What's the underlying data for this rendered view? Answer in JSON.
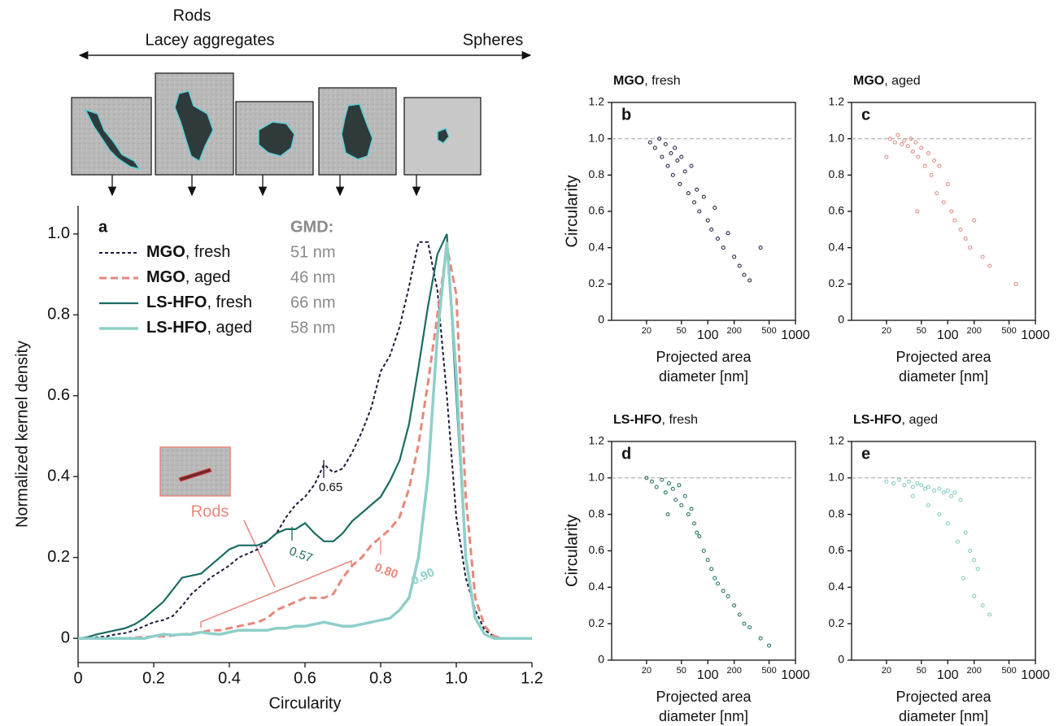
{
  "chart_data": [
    {
      "type": "line",
      "panel_label": "a",
      "xlabel": "Circularity",
      "ylabel": "Normalized kernel density",
      "morphology_labels": [
        "Rods",
        "Lacey aggregates",
        "Spheres"
      ],
      "rods_label": "Rods",
      "legend_header": "GMD:",
      "xlim": [
        0,
        1.2
      ],
      "xticks": [
        0,
        0.2,
        0.4,
        0.6,
        0.8,
        {
          "value": 1,
          "label": "1.0"
        },
        1.2
      ],
      "ylim": [
        -0.06,
        1.07
      ],
      "yticks": [
        0,
        0.2,
        0.4,
        0.6,
        0.8,
        {
          "value": 1,
          "label": "1.0"
        }
      ],
      "x": [
        0,
        0.025,
        0.05,
        0.075,
        0.1,
        0.125,
        0.15,
        0.175,
        0.2,
        0.225,
        0.25,
        0.275,
        0.3,
        0.325,
        0.35,
        0.375,
        0.4,
        0.425,
        0.45,
        0.475,
        0.5,
        0.525,
        0.55,
        0.575,
        0.6,
        0.625,
        0.65,
        0.675,
        0.7,
        0.725,
        0.75,
        0.775,
        0.8,
        0.825,
        0.85,
        0.875,
        0.9,
        0.925,
        0.95,
        0.975,
        1.0,
        1.025,
        1.05,
        1.075,
        1.1,
        1.125,
        1.15,
        1.175,
        1.2
      ],
      "series": [
        {
          "name": "MGO, fresh",
          "color": "#1c1a3a",
          "dash": "dotted",
          "gmd": "51 nm",
          "peak_label": "0.65",
          "values": [
            0,
            0,
            0.003,
            0.005,
            0.01,
            0.013,
            0.02,
            0.03,
            0.04,
            0.045,
            0.055,
            0.08,
            0.11,
            0.13,
            0.15,
            0.165,
            0.18,
            0.2,
            0.21,
            0.22,
            0.24,
            0.26,
            0.3,
            0.33,
            0.35,
            0.38,
            0.43,
            0.41,
            0.42,
            0.46,
            0.51,
            0.57,
            0.66,
            0.7,
            0.77,
            0.87,
            0.98,
            0.98,
            0.86,
            0.6,
            0.3,
            0.15,
            0.07,
            0.02,
            0.005,
            0,
            0,
            0,
            0
          ]
        },
        {
          "name": "MGO, aged",
          "color": "#e8877c",
          "dash": "dashed",
          "gmd": "46 nm",
          "peak_label": "0.80",
          "values": [
            0,
            0,
            0,
            0,
            0,
            0,
            0.002,
            0.003,
            0.005,
            0.005,
            0.007,
            0.01,
            0.012,
            0.015,
            0.02,
            0.02,
            0.025,
            0.03,
            0.035,
            0.04,
            0.05,
            0.07,
            0.08,
            0.09,
            0.1,
            0.1,
            0.1,
            0.11,
            0.15,
            0.18,
            0.2,
            0.23,
            0.25,
            0.27,
            0.3,
            0.37,
            0.48,
            0.63,
            0.8,
            0.97,
            0.85,
            0.35,
            0.1,
            0.03,
            0.005,
            0,
            0,
            0,
            0
          ]
        },
        {
          "name": "LS-HFO, fresh",
          "color": "#1a6b63",
          "dash": "solid",
          "gmd": "66 nm",
          "peak_label": "0.57",
          "values": [
            0,
            0.003,
            0.01,
            0.015,
            0.02,
            0.025,
            0.035,
            0.05,
            0.07,
            0.09,
            0.12,
            0.15,
            0.155,
            0.16,
            0.18,
            0.2,
            0.22,
            0.23,
            0.23,
            0.23,
            0.24,
            0.26,
            0.27,
            0.27,
            0.285,
            0.26,
            0.24,
            0.24,
            0.26,
            0.29,
            0.31,
            0.33,
            0.35,
            0.39,
            0.44,
            0.53,
            0.67,
            0.82,
            0.95,
            1.0,
            0.6,
            0.2,
            0.05,
            0.01,
            0,
            0,
            0,
            0,
            0
          ]
        },
        {
          "name": "LS-HFO, aged",
          "color": "#8fcfc9",
          "dash": "thick",
          "gmd": "58 nm",
          "peak_label": "0.90",
          "values": [
            0,
            0,
            0,
            0,
            0,
            0,
            0,
            0,
            0.005,
            0.01,
            0.008,
            0.01,
            0.01,
            0.015,
            0.012,
            0.01,
            0.015,
            0.02,
            0.02,
            0.02,
            0.02,
            0.025,
            0.025,
            0.03,
            0.03,
            0.035,
            0.04,
            0.035,
            0.03,
            0.03,
            0.035,
            0.04,
            0.045,
            0.05,
            0.07,
            0.1,
            0.2,
            0.4,
            0.75,
            0.98,
            0.65,
            0.2,
            0.05,
            0.01,
            0,
            0,
            0,
            0,
            0
          ]
        }
      ]
    },
    {
      "type": "scatter",
      "panel_label": "b",
      "title": "MGO, fresh",
      "ylabel": "Circularity",
      "xlabel": [
        "Projected area",
        "diameter [nm]"
      ],
      "color": "#1c1a3a",
      "log_x": true,
      "hline": 1,
      "xlim": [
        8,
        1000
      ],
      "xticks": [
        20,
        50,
        100,
        200,
        500,
        1000
      ],
      "ylim": [
        0,
        1.2
      ],
      "yticks": [
        0,
        0.2,
        0.4,
        0.6,
        0.8,
        {
          "value": 1,
          "label": "1.0"
        },
        1.2
      ],
      "x": [
        22,
        25,
        28,
        30,
        33,
        35,
        38,
        40,
        42,
        45,
        48,
        50,
        55,
        60,
        65,
        70,
        75,
        80,
        90,
        100,
        110,
        120,
        130,
        150,
        170,
        200,
        230,
        260,
        300,
        400
      ],
      "values": [
        0.98,
        0.95,
        1.0,
        0.9,
        0.97,
        0.85,
        0.92,
        0.8,
        0.95,
        0.88,
        0.75,
        0.9,
        0.82,
        0.7,
        0.85,
        0.65,
        0.72,
        0.6,
        0.68,
        0.55,
        0.5,
        0.62,
        0.45,
        0.4,
        0.48,
        0.35,
        0.3,
        0.25,
        0.22,
        0.4
      ]
    },
    {
      "type": "scatter",
      "panel_label": "c",
      "title": "MGO, aged",
      "xlabel": [
        "Projected area",
        "diameter [nm]"
      ],
      "color": "#e0877d",
      "log_x": true,
      "hline": 1,
      "xlim": [
        8,
        1000
      ],
      "xticks": [
        20,
        50,
        100,
        200,
        500,
        1000
      ],
      "ylim": [
        0,
        1.2
      ],
      "yticks": [
        0,
        0.2,
        0.4,
        0.6,
        0.8,
        {
          "value": 1,
          "label": "1.0"
        },
        1.2
      ],
      "x": [
        22,
        25,
        27,
        30,
        32,
        35,
        38,
        40,
        43,
        46,
        50,
        55,
        60,
        65,
        70,
        75,
        80,
        90,
        100,
        110,
        120,
        140,
        160,
        180,
        200,
        250,
        300,
        20,
        45,
        600
      ],
      "values": [
        1.0,
        0.98,
        1.02,
        0.97,
        0.99,
        0.96,
        1.0,
        0.93,
        0.98,
        0.9,
        0.95,
        0.85,
        0.92,
        0.8,
        0.88,
        0.7,
        0.85,
        0.65,
        0.75,
        0.6,
        0.55,
        0.5,
        0.45,
        0.4,
        0.55,
        0.35,
        0.3,
        0.9,
        0.6,
        0.2
      ]
    },
    {
      "type": "scatter",
      "panel_label": "d",
      "title": "LS-HFO, fresh",
      "ylabel": "Circularity",
      "xlabel": [
        "Projected area",
        "diameter [nm]"
      ],
      "color": "#1a6b63",
      "log_x": true,
      "hline": 1,
      "xlim": [
        8,
        1000
      ],
      "xticks": [
        20,
        50,
        100,
        200,
        500,
        1000
      ],
      "ylim": [
        0,
        1.2
      ],
      "yticks": [
        0,
        0.2,
        0.4,
        0.6,
        0.8,
        {
          "value": 1,
          "label": "1.0"
        },
        1.2
      ],
      "x": [
        20,
        23,
        26,
        30,
        33,
        36,
        40,
        43,
        47,
        50,
        55,
        60,
        65,
        70,
        75,
        80,
        90,
        100,
        110,
        120,
        130,
        150,
        170,
        200,
        230,
        260,
        300,
        400,
        500,
        35
      ],
      "values": [
        1.0,
        0.98,
        0.95,
        0.99,
        0.92,
        0.97,
        0.94,
        0.88,
        0.96,
        0.85,
        0.9,
        0.8,
        0.83,
        0.75,
        0.7,
        0.68,
        0.6,
        0.55,
        0.5,
        0.45,
        0.42,
        0.38,
        0.35,
        0.3,
        0.25,
        0.2,
        0.18,
        0.12,
        0.08,
        0.8
      ]
    },
    {
      "type": "scatter",
      "panel_label": "e",
      "title": "LS-HFO, aged",
      "xlabel": [
        "Projected area",
        "diameter [nm]"
      ],
      "color": "#7ccac3",
      "log_x": true,
      "hline": 1,
      "xlim": [
        8,
        1000
      ],
      "xticks": [
        20,
        50,
        100,
        200,
        500,
        1000
      ],
      "ylim": [
        0,
        1.2
      ],
      "yticks": [
        0,
        0.2,
        0.4,
        0.6,
        0.8,
        {
          "value": 1,
          "label": "1.0"
        },
        1.2
      ],
      "x": [
        20,
        24,
        28,
        32,
        36,
        40,
        45,
        50,
        55,
        60,
        70,
        80,
        90,
        100,
        110,
        120,
        140,
        160,
        180,
        200,
        220,
        250,
        100,
        80,
        150,
        130,
        200,
        300,
        60,
        40
      ],
      "values": [
        0.98,
        0.97,
        0.99,
        0.96,
        0.98,
        0.95,
        0.97,
        0.96,
        0.94,
        0.95,
        0.93,
        0.94,
        0.92,
        0.93,
        0.9,
        0.92,
        0.88,
        0.7,
        0.6,
        0.55,
        0.5,
        0.3,
        0.75,
        0.8,
        0.45,
        0.65,
        0.35,
        0.25,
        0.85,
        0.9
      ]
    }
  ]
}
